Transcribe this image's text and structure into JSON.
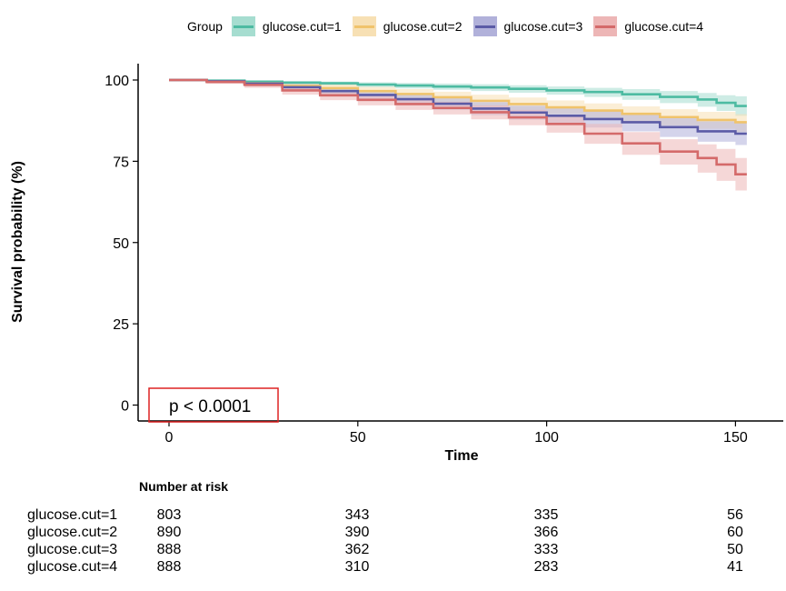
{
  "chart_data": {
    "type": "line",
    "subtype": "kaplan-meier",
    "title": "",
    "xlabel": "Time",
    "ylabel": "Survival probability (%)",
    "xlim": [
      -6,
      162
    ],
    "ylim": [
      -5,
      105
    ],
    "xticks": [
      0,
      50,
      100,
      150
    ],
    "yticks": [
      0,
      25,
      50,
      75,
      100
    ],
    "grid": false,
    "legend": {
      "title": "Group",
      "position": "top"
    },
    "pvalue_text": "p < 0.0001",
    "series": [
      {
        "name": "glucose.cut=1",
        "color": "#4DBBA2",
        "band_color": "#A6DDD0",
        "points": [
          [
            0,
            100
          ],
          [
            10,
            99.8
          ],
          [
            20,
            99.5
          ],
          [
            30,
            99.2
          ],
          [
            40,
            99
          ],
          [
            50,
            98.6
          ],
          [
            60,
            98.3
          ],
          [
            70,
            98
          ],
          [
            80,
            97.7
          ],
          [
            90,
            97.3
          ],
          [
            100,
            96.8
          ],
          [
            110,
            96.3
          ],
          [
            120,
            95.6
          ],
          [
            130,
            94.8
          ],
          [
            140,
            94
          ],
          [
            145,
            93
          ],
          [
            150,
            92
          ],
          [
            153,
            92
          ]
        ],
        "lower": [
          [
            0,
            100
          ],
          [
            10,
            99.6
          ],
          [
            20,
            99.1
          ],
          [
            30,
            98.7
          ],
          [
            40,
            98.3
          ],
          [
            50,
            97.8
          ],
          [
            60,
            97.4
          ],
          [
            70,
            97
          ],
          [
            80,
            96.6
          ],
          [
            90,
            96.1
          ],
          [
            100,
            95.5
          ],
          [
            110,
            94.8
          ],
          [
            120,
            93.9
          ],
          [
            130,
            92.9
          ],
          [
            140,
            91.8
          ],
          [
            145,
            90.5
          ],
          [
            150,
            89
          ],
          [
            153,
            89
          ]
        ],
        "upper": [
          [
            0,
            100
          ],
          [
            10,
            99.9
          ],
          [
            20,
            99.8
          ],
          [
            30,
            99.6
          ],
          [
            40,
            99.5
          ],
          [
            50,
            99.3
          ],
          [
            60,
            99.1
          ],
          [
            70,
            98.9
          ],
          [
            80,
            98.7
          ],
          [
            90,
            98.4
          ],
          [
            100,
            98
          ],
          [
            110,
            97.6
          ],
          [
            120,
            97.2
          ],
          [
            130,
            96.6
          ],
          [
            140,
            96
          ],
          [
            145,
            95.3
          ],
          [
            150,
            95
          ],
          [
            153,
            95
          ]
        ]
      },
      {
        "name": "glucose.cut=2",
        "color": "#F0C36B",
        "band_color": "#F7E0B4",
        "points": [
          [
            0,
            100
          ],
          [
            10,
            99.6
          ],
          [
            20,
            99
          ],
          [
            30,
            98.2
          ],
          [
            40,
            97.5
          ],
          [
            50,
            96.6
          ],
          [
            60,
            95.7
          ],
          [
            70,
            94.7
          ],
          [
            80,
            93.6
          ],
          [
            90,
            92.6
          ],
          [
            100,
            91.6
          ],
          [
            110,
            90.6
          ],
          [
            120,
            89.6
          ],
          [
            130,
            88.6
          ],
          [
            140,
            87.7
          ],
          [
            150,
            87
          ],
          [
            153,
            87
          ]
        ],
        "lower": [
          [
            0,
            100
          ],
          [
            10,
            99.1
          ],
          [
            20,
            98.3
          ],
          [
            30,
            97.2
          ],
          [
            40,
            96.3
          ],
          [
            50,
            95.2
          ],
          [
            60,
            94.1
          ],
          [
            70,
            93
          ],
          [
            80,
            91.8
          ],
          [
            90,
            90.6
          ],
          [
            100,
            89.5
          ],
          [
            110,
            88.3
          ],
          [
            120,
            87.2
          ],
          [
            130,
            86
          ],
          [
            140,
            85
          ],
          [
            150,
            84
          ],
          [
            153,
            84
          ]
        ],
        "upper": [
          [
            0,
            100
          ],
          [
            10,
            99.9
          ],
          [
            20,
            99.6
          ],
          [
            30,
            99.1
          ],
          [
            40,
            98.6
          ],
          [
            50,
            97.9
          ],
          [
            60,
            97.2
          ],
          [
            70,
            96.4
          ],
          [
            80,
            95.5
          ],
          [
            90,
            94.6
          ],
          [
            100,
            93.7
          ],
          [
            110,
            92.8
          ],
          [
            120,
            91.9
          ],
          [
            130,
            91
          ],
          [
            140,
            90.2
          ],
          [
            150,
            89.5
          ],
          [
            153,
            89.5
          ]
        ]
      },
      {
        "name": "glucose.cut=3",
        "color": "#5B5BA6",
        "band_color": "#B1B1DA",
        "points": [
          [
            0,
            100
          ],
          [
            10,
            99.6
          ],
          [
            20,
            98.9
          ],
          [
            30,
            97.8
          ],
          [
            40,
            96.6
          ],
          [
            50,
            95.4
          ],
          [
            60,
            94.1
          ],
          [
            70,
            92.7
          ],
          [
            80,
            91.2
          ],
          [
            90,
            90
          ],
          [
            100,
            89
          ],
          [
            110,
            88
          ],
          [
            120,
            87
          ],
          [
            130,
            85.5
          ],
          [
            140,
            84.2
          ],
          [
            150,
            83.5
          ],
          [
            153,
            83.5
          ]
        ],
        "lower": [
          [
            0,
            100
          ],
          [
            10,
            99.1
          ],
          [
            20,
            98.1
          ],
          [
            30,
            96.8
          ],
          [
            40,
            95.3
          ],
          [
            50,
            93.9
          ],
          [
            60,
            92.4
          ],
          [
            70,
            90.8
          ],
          [
            80,
            89.2
          ],
          [
            90,
            87.8
          ],
          [
            100,
            86.6
          ],
          [
            110,
            85.4
          ],
          [
            120,
            84.2
          ],
          [
            130,
            82.5
          ],
          [
            140,
            81
          ],
          [
            150,
            80
          ],
          [
            153,
            80
          ]
        ],
        "upper": [
          [
            0,
            100
          ],
          [
            10,
            99.9
          ],
          [
            20,
            99.5
          ],
          [
            30,
            98.7
          ],
          [
            40,
            97.8
          ],
          [
            50,
            96.8
          ],
          [
            60,
            95.7
          ],
          [
            70,
            94.5
          ],
          [
            80,
            93.2
          ],
          [
            90,
            92.1
          ],
          [
            100,
            91.3
          ],
          [
            110,
            90.5
          ],
          [
            120,
            89.6
          ],
          [
            130,
            88.4
          ],
          [
            140,
            87.3
          ],
          [
            150,
            86.8
          ],
          [
            153,
            86.8
          ]
        ]
      },
      {
        "name": "glucose.cut=4",
        "color": "#D46A6A",
        "band_color": "#EDB6B6",
        "points": [
          [
            0,
            100
          ],
          [
            10,
            99.4
          ],
          [
            20,
            98.5
          ],
          [
            30,
            96.8
          ],
          [
            40,
            95.3
          ],
          [
            50,
            93.9
          ],
          [
            60,
            92.6
          ],
          [
            70,
            91.4
          ],
          [
            80,
            90.1
          ],
          [
            90,
            88.5
          ],
          [
            100,
            86.5
          ],
          [
            110,
            83.5
          ],
          [
            120,
            80.5
          ],
          [
            130,
            78
          ],
          [
            140,
            76
          ],
          [
            145,
            74
          ],
          [
            150,
            71
          ],
          [
            153,
            71
          ]
        ],
        "lower": [
          [
            0,
            100
          ],
          [
            10,
            98.9
          ],
          [
            20,
            97.6
          ],
          [
            30,
            95.5
          ],
          [
            40,
            93.8
          ],
          [
            50,
            92.2
          ],
          [
            60,
            90.8
          ],
          [
            70,
            89.4
          ],
          [
            80,
            87.9
          ],
          [
            90,
            86.1
          ],
          [
            100,
            83.8
          ],
          [
            110,
            80.4
          ],
          [
            120,
            77
          ],
          [
            130,
            74
          ],
          [
            140,
            71.5
          ],
          [
            145,
            69
          ],
          [
            150,
            66
          ],
          [
            153,
            66
          ]
        ],
        "upper": [
          [
            0,
            100
          ],
          [
            10,
            99.8
          ],
          [
            20,
            99.2
          ],
          [
            30,
            97.9
          ],
          [
            40,
            96.6
          ],
          [
            50,
            95.4
          ],
          [
            60,
            94.3
          ],
          [
            70,
            93.3
          ],
          [
            80,
            92.2
          ],
          [
            90,
            90.8
          ],
          [
            100,
            89.1
          ],
          [
            110,
            86.5
          ],
          [
            120,
            84
          ],
          [
            130,
            81.8
          ],
          [
            140,
            80.2
          ],
          [
            145,
            78.8
          ],
          [
            150,
            76
          ],
          [
            153,
            76
          ]
        ]
      }
    ]
  },
  "risk_table": {
    "title": "Number at risk",
    "times": [
      0,
      50,
      100,
      150
    ],
    "rows": [
      {
        "name": "glucose.cut=1",
        "values": [
          "803",
          "343",
          "335",
          "56"
        ]
      },
      {
        "name": "glucose.cut=2",
        "values": [
          "890",
          "390",
          "366",
          "60"
        ]
      },
      {
        "name": "glucose.cut=3",
        "values": [
          "888",
          "362",
          "333",
          "50"
        ]
      },
      {
        "name": "glucose.cut=4",
        "values": [
          "888",
          "310",
          "283",
          "41"
        ]
      }
    ]
  }
}
